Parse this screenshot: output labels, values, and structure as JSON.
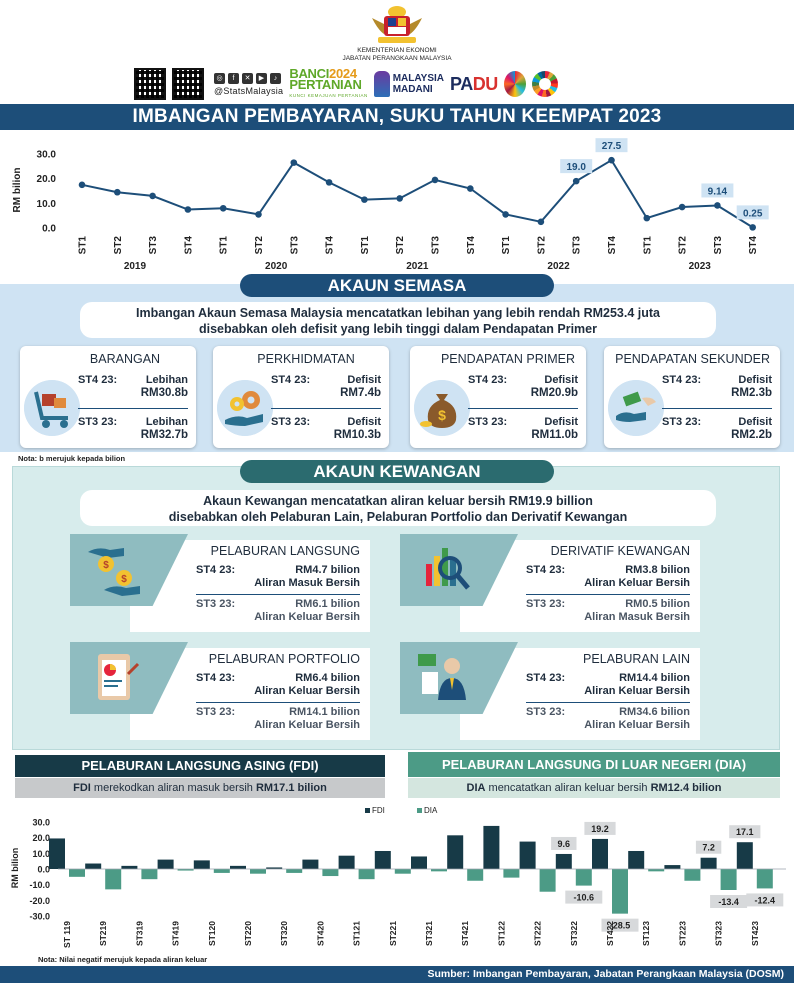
{
  "header": {
    "ministry_line1": "KEMENTERIAN EKONOMI",
    "ministry_line2": "JABATAN PERANGKAAN MALAYSIA",
    "social_handle": "@StatsMalaysia",
    "banci_line1": "BANCI",
    "banci_year": "2024",
    "banci_line2": "PERTANIAN",
    "banci_tagline": "KUNCI KEMAJUAN PERTANIAN",
    "madani_line1": "MALAYSIA",
    "madani_line2": "MADANI",
    "padu_pa": "PA",
    "padu_du": "DU"
  },
  "title": "IMBANGAN PEMBAYARAN, SUKU TAHUN KEEMPAT 2023",
  "line_chart": {
    "ylabel": "RM bilion",
    "yticks": [
      "30.0",
      "20.0",
      "10.0",
      "0.0"
    ],
    "ylim": [
      0,
      30
    ],
    "categories": [
      "ST1",
      "ST2",
      "ST3",
      "ST4",
      "ST1",
      "ST2",
      "ST3",
      "ST4",
      "ST1",
      "ST2",
      "ST3",
      "ST4",
      "ST1",
      "ST2",
      "ST3",
      "ST4",
      "ST1",
      "ST2",
      "ST3",
      "ST4"
    ],
    "years": [
      "2019",
      "2020",
      "2021",
      "2022",
      "2023"
    ],
    "values": [
      17.5,
      14.5,
      13.0,
      7.5,
      8.0,
      5.5,
      26.5,
      18.5,
      11.5,
      12.0,
      19.5,
      16.0,
      5.5,
      2.5,
      19.0,
      27.5,
      4.0,
      8.5,
      9.14,
      0.25
    ],
    "labels": [
      {
        "index": 14,
        "text": "19.0"
      },
      {
        "index": 15,
        "text": "27.5"
      },
      {
        "index": 18,
        "text": "9.14"
      },
      {
        "index": 19,
        "text": "0.25"
      }
    ],
    "line_color": "#1d4e79"
  },
  "akaun_semasa": {
    "title": "AKAUN SEMASA",
    "desc_line1": "Imbangan Akaun Semasa Malaysia mencatatkan lebihan yang lebih rendah RM253.4 juta",
    "desc_line2": "disebabkan oleh defisit yang lebih tinggi dalam Pendapatan Primer",
    "cards": [
      {
        "title": "BARANGAN",
        "icon": "cart-icon",
        "st4_label": "ST4 23:",
        "st4_status": "Lebihan",
        "st4_value": "RM30.8b",
        "st3_label": "ST3 23:",
        "st3_status": "Lebihan",
        "st3_value": "RM32.7b"
      },
      {
        "title": "PERKHIDMATAN",
        "icon": "gear-hand-icon",
        "st4_label": "ST4 23:",
        "st4_status": "Defisit",
        "st4_value": "RM7.4b",
        "st3_label": "ST3 23:",
        "st3_status": "Defisit",
        "st3_value": "RM10.3b"
      },
      {
        "title": "PENDAPATAN PRIMER",
        "icon": "money-bag-icon",
        "st4_label": "ST4 23:",
        "st4_status": "Defisit",
        "st4_value": "RM20.9b",
        "st3_label": "ST3 23:",
        "st3_status": "Defisit",
        "st3_value": "RM11.0b"
      },
      {
        "title": "PENDAPATAN SEKUNDER",
        "icon": "money-transfer-icon",
        "st4_label": "ST4 23:",
        "st4_status": "Defisit",
        "st4_value": "RM2.3b",
        "st3_label": "ST3 23:",
        "st3_status": "Defisit",
        "st3_value": "RM2.2b"
      }
    ],
    "note": "Nota: b merujuk kepada bilion"
  },
  "akaun_kewangan": {
    "title": "AKAUN KEWANGAN",
    "desc_line1": "Akaun Kewangan mencatatkan aliran keluar bersih RM19.9 billion",
    "desc_line2": "disebabkan oleh Pelaburan Lain, Pelaburan Portfolio dan Derivatif Kewangan",
    "items": [
      {
        "title": "PELABURAN LANGSUNG",
        "icon": "coins-hand-icon",
        "st4_label": "ST4 23:",
        "st4_value": "RM4.7 bilion",
        "st4_flow": "Aliran Masuk Bersih",
        "st3_label": "ST3 23:",
        "st3_value": "RM6.1 bilion",
        "st3_flow": "Aliran Keluar Bersih"
      },
      {
        "title": "DERIVATIF KEWANGAN",
        "icon": "chart-magnifier-icon",
        "st4_label": "ST4 23:",
        "st4_value": "RM3.8 bilion",
        "st4_flow": "Aliran Keluar Bersih",
        "st3_label": "ST3 23:",
        "st3_value": "RM0.5 bilion",
        "st3_flow": "Aliran Masuk Bersih"
      },
      {
        "title": "PELABURAN PORTFOLIO",
        "icon": "clipboard-chart-icon",
        "st4_label": "ST4 23:",
        "st4_value": "RM6.4 bilion",
        "st4_flow": "Aliran Keluar Bersih",
        "st3_label": "ST3 23:",
        "st3_value": "RM14.1 bilion",
        "st3_flow": "Aliran Keluar Bersih"
      },
      {
        "title": "PELABURAN LAIN",
        "icon": "businessman-icon",
        "st4_label": "ST4 23:",
        "st4_value": "RM14.4 bilion",
        "st4_flow": "Aliran Keluar Bersih",
        "st3_label": "ST3 23:",
        "st3_value": "RM34.6 bilion",
        "st3_flow": "Aliran Keluar Bersih"
      }
    ]
  },
  "fdi": {
    "title": "PELABURAN LANGSUNG ASING (FDI)",
    "sub_prefix": "FDI",
    "sub_middle": " merekodkan aliran masuk bersih ",
    "sub_value": "RM17.1 bilion"
  },
  "dia": {
    "title": "PELABURAN LANGSUNG DI LUAR NEGERI (DIA)",
    "sub_prefix": "DIA",
    "sub_middle": " mencatatkan aliran keluar bersih ",
    "sub_value": "RM12.4 bilion"
  },
  "chart_data": {
    "type": "bar",
    "ylabel": "RM bilion",
    "yticks": [
      "30.0",
      "20.0",
      "10.0",
      "0.0",
      "-10.0",
      "-20.0",
      "-30.0"
    ],
    "ylim": [
      -30,
      30
    ],
    "legend": [
      "FDI",
      "DIA"
    ],
    "legend_position": "top-center",
    "categories": [
      "ST 119",
      "ST219",
      "ST319",
      "ST419",
      "ST120",
      "ST220",
      "ST320",
      "ST420",
      "ST121",
      "ST221",
      "ST321",
      "ST421",
      "ST122",
      "ST222",
      "ST322",
      "ST422",
      "ST123",
      "ST223",
      "ST323",
      "ST423"
    ],
    "series": [
      {
        "name": "FDI",
        "color": "#173a47",
        "values": [
          19.5,
          3.5,
          2.0,
          6.0,
          5.5,
          2.0,
          1.0,
          6.0,
          8.5,
          11.5,
          8.0,
          21.5,
          27.5,
          17.5,
          9.6,
          19.2,
          11.5,
          2.5,
          7.2,
          17.1
        ]
      },
      {
        "name": "DIA",
        "color": "#4c9b86",
        "values": [
          -5.0,
          -13.0,
          -6.5,
          -1.0,
          -2.5,
          -3.0,
          -2.5,
          -4.5,
          -6.5,
          -3.0,
          -1.5,
          -7.5,
          -5.5,
          -14.5,
          -10.6,
          -28.5,
          -1.5,
          -7.5,
          -13.4,
          -12.4
        ]
      }
    ],
    "labels": [
      {
        "series": 0,
        "index": 14,
        "text": "9.6"
      },
      {
        "series": 0,
        "index": 15,
        "text": "19.2"
      },
      {
        "series": 0,
        "index": 18,
        "text": "7.2"
      },
      {
        "series": 0,
        "index": 19,
        "text": "17.1"
      },
      {
        "series": 1,
        "index": 14,
        "text": "-10.6"
      },
      {
        "series": 1,
        "index": 15,
        "text": "-28.5"
      },
      {
        "series": 1,
        "index": 18,
        "text": "-13.4"
      },
      {
        "series": 1,
        "index": 19,
        "text": "-12.4"
      }
    ],
    "note": "Nota: Nilai negatif merujuk kepada aliran keluar"
  },
  "footer": "Sumber: Imbangan Pembayaran, Jabatan Perangkaan Malaysia (DOSM)"
}
